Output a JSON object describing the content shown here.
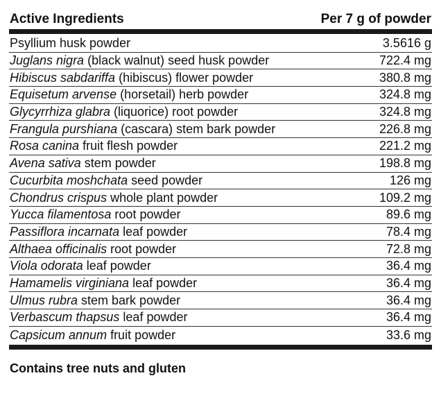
{
  "table": {
    "header_left": "Active Ingredients",
    "header_right": "Per 7 g of powder",
    "rows": [
      {
        "italic": "",
        "plain": "Psyllium husk powder",
        "amount": "3.5616 g"
      },
      {
        "italic": "Juglans nigra",
        "plain": " (black walnut) seed husk powder",
        "amount": "722.4 mg"
      },
      {
        "italic": "Hibiscus sabdariffa",
        "plain": " (hibiscus) flower powder",
        "amount": "380.8 mg"
      },
      {
        "italic": "Equisetum arvense",
        "plain": " (horsetail) herb powder",
        "amount": "324.8 mg"
      },
      {
        "italic": "Glycyrrhiza glabra",
        "plain": " (liquorice) root powder",
        "amount": "324.8 mg"
      },
      {
        "italic": "Frangula purshiana",
        "plain": " (cascara) stem bark powder",
        "amount": "226.8 mg"
      },
      {
        "italic": "Rosa canina",
        "plain": " fruit flesh powder",
        "amount": "221.2 mg"
      },
      {
        "italic": "Avena sativa",
        "plain": " stem powder",
        "amount": "198.8 mg"
      },
      {
        "italic": "Cucurbita moshchata",
        "plain": " seed powder",
        "amount": "126 mg"
      },
      {
        "italic": "Chondrus crispus",
        "plain": " whole plant powder",
        "amount": "109.2 mg"
      },
      {
        "italic": "Yucca filamentosa",
        "plain": " root powder",
        "amount": "89.6 mg"
      },
      {
        "italic": "Passiflora incarnata",
        "plain": " leaf powder",
        "amount": "78.4 mg"
      },
      {
        "italic": "Althaea officinalis",
        "plain": " root powder",
        "amount": "72.8 mg"
      },
      {
        "italic": "Viola odorata",
        "plain": " leaf powder",
        "amount": "36.4 mg"
      },
      {
        "italic": "Hamamelis virginiana",
        "plain": " leaf powder",
        "amount": "36.4 mg"
      },
      {
        "italic": "Ulmus rubra",
        "plain": " stem bark powder",
        "amount": "36.4 mg"
      },
      {
        "italic": "Verbascum thapsus",
        "plain": " leaf powder",
        "amount": "36.4 mg"
      },
      {
        "italic": "Capsicum annum",
        "plain": " fruit powder",
        "amount": "33.6 mg"
      }
    ]
  },
  "footer": {
    "text": "Contains tree nuts and gluten"
  }
}
